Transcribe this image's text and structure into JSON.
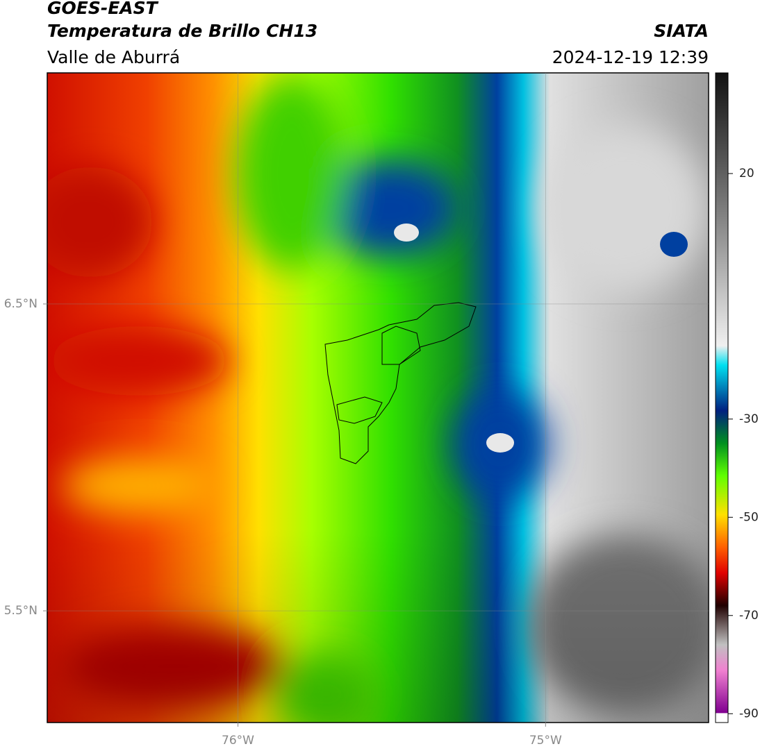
{
  "header": {
    "title": "GOES-EAST",
    "subtitle": "Temperatura de Brillo CH13",
    "region": "Valle de Aburrá",
    "source": "SIATA",
    "datetime": "2024-12-19 12:39"
  },
  "map": {
    "lonlim": [
      -76.62,
      -74.47
    ],
    "latlim": [
      5.136,
      7.253
    ],
    "lon_ticks": [
      {
        "value": -76,
        "label": "76°W"
      },
      {
        "value": -75,
        "label": "75°W"
      }
    ],
    "lat_ticks": [
      {
        "value": 6.5,
        "label": "6.5°N"
      },
      {
        "value": 5.5,
        "label": "5.5°N"
      }
    ]
  },
  "colorbar": {
    "lim": [
      -91.8,
      40.5
    ],
    "ticks": [
      20,
      -30,
      -50,
      -70,
      -90
    ]
  }
}
